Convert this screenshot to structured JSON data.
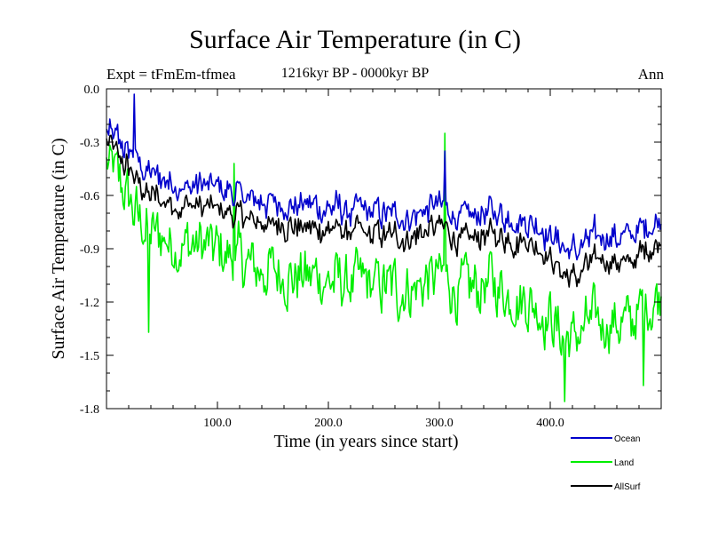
{
  "chart_data": {
    "type": "line",
    "title": "Surface Air Temperature (in C)",
    "subtitle": "1216kyr BP - 0000kyr BP",
    "experiment_label": "Expt = tFmEm-tfmea",
    "season_label": "Ann",
    "xlabel": "Time (in years since start)",
    "ylabel": "Surface Air Temperature (in C)",
    "xlim": [
      0,
      500
    ],
    "ylim": [
      -1.8,
      0.0
    ],
    "x_ticks": [
      100,
      200,
      300,
      400
    ],
    "x_tick_labels": [
      "100.0",
      "200.0",
      "300.0",
      "400.0"
    ],
    "y_ticks": [
      0.0,
      -0.3,
      -0.6,
      -0.9,
      -1.2,
      -1.5,
      -1.8
    ],
    "y_tick_labels": [
      "0.0",
      "-0.3",
      "-0.6",
      "-0.9",
      "-1.2",
      "-1.5",
      "-1.8"
    ],
    "legend_position": "bottom-right",
    "x": [
      0,
      10,
      20,
      30,
      40,
      50,
      60,
      70,
      80,
      90,
      100,
      110,
      120,
      130,
      140,
      150,
      160,
      170,
      180,
      190,
      200,
      210,
      220,
      230,
      240,
      250,
      260,
      270,
      280,
      290,
      300,
      310,
      320,
      330,
      340,
      350,
      360,
      370,
      380,
      390,
      400,
      410,
      420,
      430,
      440,
      450,
      460,
      470,
      480,
      490,
      500
    ],
    "series": [
      {
        "name": "Ocean",
        "color": "#0000cc",
        "values": [
          -0.25,
          -0.3,
          -0.35,
          -0.42,
          -0.48,
          -0.5,
          -0.52,
          -0.55,
          -0.55,
          -0.55,
          -0.56,
          -0.58,
          -0.6,
          -0.62,
          -0.63,
          -0.64,
          -0.64,
          -0.65,
          -0.66,
          -0.67,
          -0.67,
          -0.68,
          -0.69,
          -0.69,
          -0.7,
          -0.7,
          -0.71,
          -0.71,
          -0.7,
          -0.68,
          -0.66,
          -0.7,
          -0.74,
          -0.72,
          -0.7,
          -0.7,
          -0.72,
          -0.73,
          -0.74,
          -0.76,
          -0.82,
          -0.88,
          -0.92,
          -0.88,
          -0.84,
          -0.82,
          -0.84,
          -0.84,
          -0.8,
          -0.76,
          -0.72
        ],
        "peaks": [
          [
            25,
            -0.03
          ],
          [
            305,
            -0.35
          ],
          [
            10,
            -0.2
          ]
        ]
      },
      {
        "name": "Land",
        "color": "#00ee00",
        "values": [
          -0.4,
          -0.52,
          -0.62,
          -0.75,
          -0.82,
          -0.84,
          -0.86,
          -0.88,
          -0.88,
          -0.9,
          -0.92,
          -0.95,
          -0.98,
          -1.0,
          -1.02,
          -1.03,
          -1.04,
          -1.05,
          -1.06,
          -1.07,
          -1.07,
          -1.08,
          -1.09,
          -1.1,
          -1.1,
          -1.11,
          -1.12,
          -1.12,
          -1.1,
          -1.07,
          -1.05,
          -1.1,
          -1.15,
          -1.13,
          -1.1,
          -1.11,
          -1.14,
          -1.16,
          -1.18,
          -1.22,
          -1.3,
          -1.38,
          -1.42,
          -1.36,
          -1.32,
          -1.3,
          -1.32,
          -1.32,
          -1.26,
          -1.2,
          -1.15
        ],
        "peaks": [
          [
            305,
            -0.25
          ],
          [
            115,
            -0.42
          ],
          [
            413,
            -1.76
          ],
          [
            38,
            -1.37
          ],
          [
            484,
            -1.67
          ]
        ]
      },
      {
        "name": "AllSurf",
        "color": "#000000",
        "values": [
          -0.3,
          -0.38,
          -0.45,
          -0.55,
          -0.6,
          -0.62,
          -0.64,
          -0.66,
          -0.66,
          -0.67,
          -0.68,
          -0.7,
          -0.72,
          -0.74,
          -0.75,
          -0.76,
          -0.76,
          -0.77,
          -0.78,
          -0.79,
          -0.79,
          -0.8,
          -0.81,
          -0.81,
          -0.82,
          -0.82,
          -0.83,
          -0.83,
          -0.82,
          -0.8,
          -0.78,
          -0.82,
          -0.86,
          -0.84,
          -0.82,
          -0.82,
          -0.84,
          -0.85,
          -0.86,
          -0.89,
          -0.96,
          -1.03,
          -1.07,
          -1.02,
          -0.98,
          -0.96,
          -0.98,
          -0.98,
          -0.94,
          -0.89,
          -0.85
        ],
        "peaks": []
      }
    ]
  }
}
